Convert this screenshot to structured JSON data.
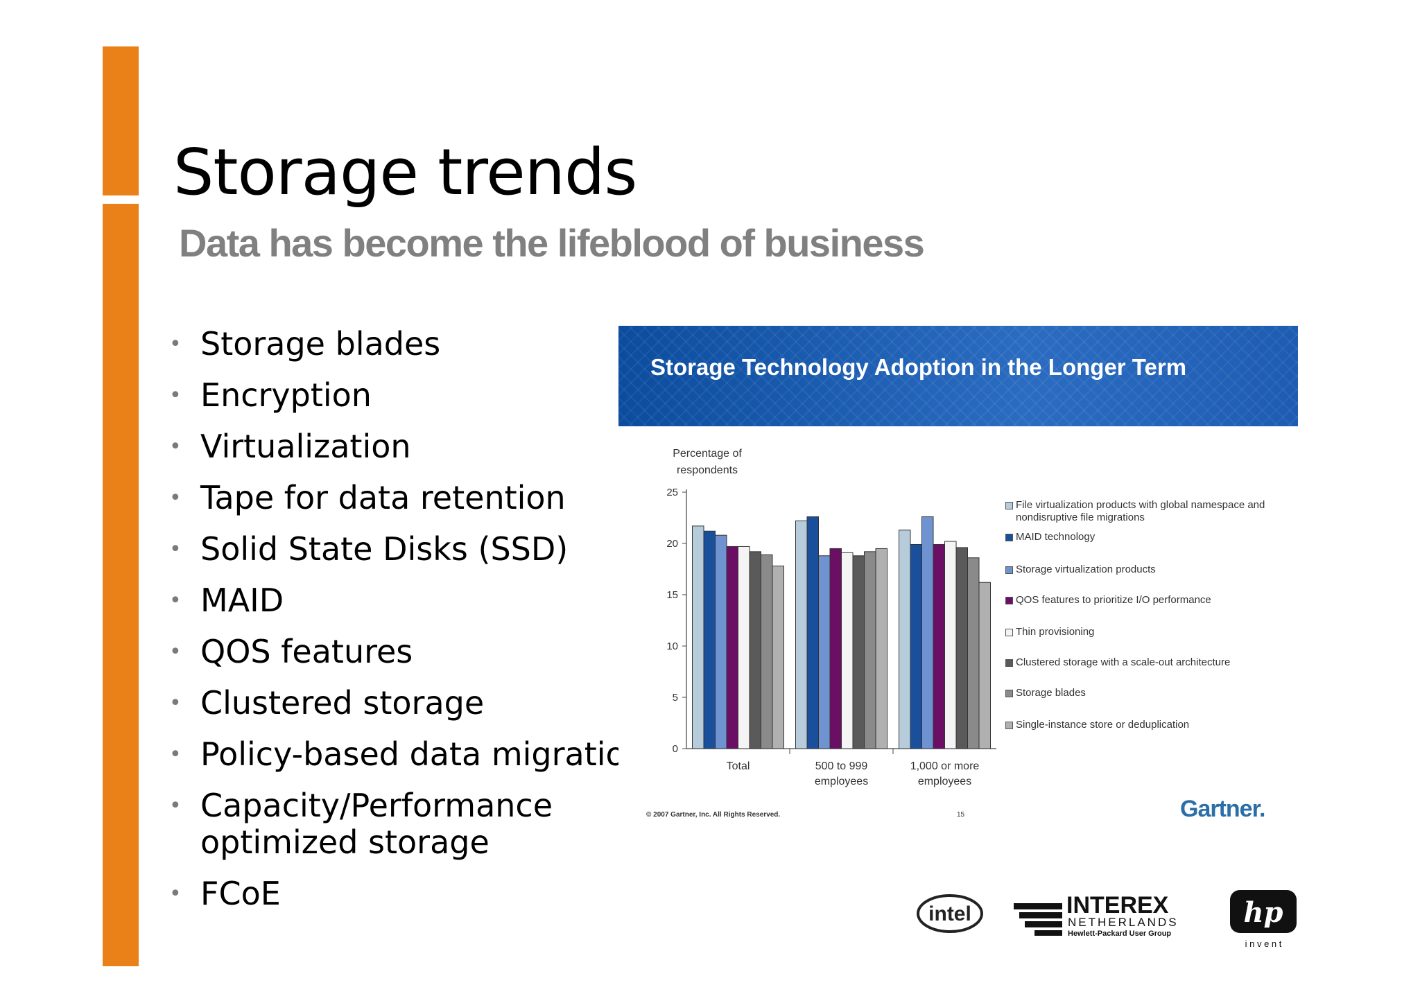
{
  "slide": {
    "title": "Storage trends",
    "subtitle": "Data has become the lifeblood of business",
    "accent_color": "#ea8018",
    "bullets": [
      "Storage blades",
      "Encryption",
      "Virtualization",
      "Tape for data retention",
      "Solid State Disks (SSD)",
      "MAID",
      "QOS features",
      "Clustered storage",
      "Policy-based data migration",
      "Capacity/Performance optimized storage",
      "FCoE"
    ]
  },
  "chart_panel": {
    "banner_title": "Storage Technology Adoption in the Longer Term",
    "copyright": "© 2007 Gartner, Inc. All Rights Reserved.",
    "page_number": "15",
    "source_logo": "Gartner."
  },
  "chart_data": {
    "type": "bar",
    "title": "Storage Technology Adoption in the Longer Term",
    "ylabel": "Percentage of respondents",
    "xlabel": "",
    "ylim": [
      0,
      25
    ],
    "yticks": [
      0,
      5,
      10,
      15,
      20,
      25
    ],
    "grid": false,
    "legend_position": "right",
    "categories": [
      "Total",
      "500 to 999 employees",
      "1,000 or more employees"
    ],
    "series": [
      {
        "name": "File virtualization products with global namespace and nondisruptive file migrations",
        "color": "#b7ccdb",
        "values": [
          21.7,
          22.2,
          21.3
        ]
      },
      {
        "name": "MAID technology",
        "color": "#1a4f9c",
        "values": [
          21.2,
          22.6,
          19.9
        ]
      },
      {
        "name": "Storage virtualization products",
        "color": "#6f93d1",
        "values": [
          20.8,
          18.8,
          22.6
        ]
      },
      {
        "name": "QOS features to prioritize I/O performance",
        "color": "#6a0f63",
        "values": [
          19.7,
          19.5,
          19.9
        ]
      },
      {
        "name": "Thin provisioning",
        "color": "#f4f4f4",
        "values": [
          19.7,
          19.1,
          20.2
        ]
      },
      {
        "name": "Clustered storage with a scale-out architecture",
        "color": "#5a5a5a",
        "values": [
          19.2,
          18.8,
          19.6
        ]
      },
      {
        "name": "Storage blades",
        "color": "#8a8a8a",
        "values": [
          18.9,
          19.2,
          18.6
        ]
      },
      {
        "name": "Single-instance store or deduplication",
        "color": "#b0b0b0",
        "values": [
          17.8,
          19.5,
          16.2
        ]
      }
    ]
  },
  "logos": {
    "intel": "intel",
    "interex_name": "INTEREX",
    "interex_country": "NETHERLANDS",
    "interex_tagline": "Hewlett-Packard User Group",
    "hp_mark": "hp",
    "hp_tagline": "i n v e n t"
  }
}
